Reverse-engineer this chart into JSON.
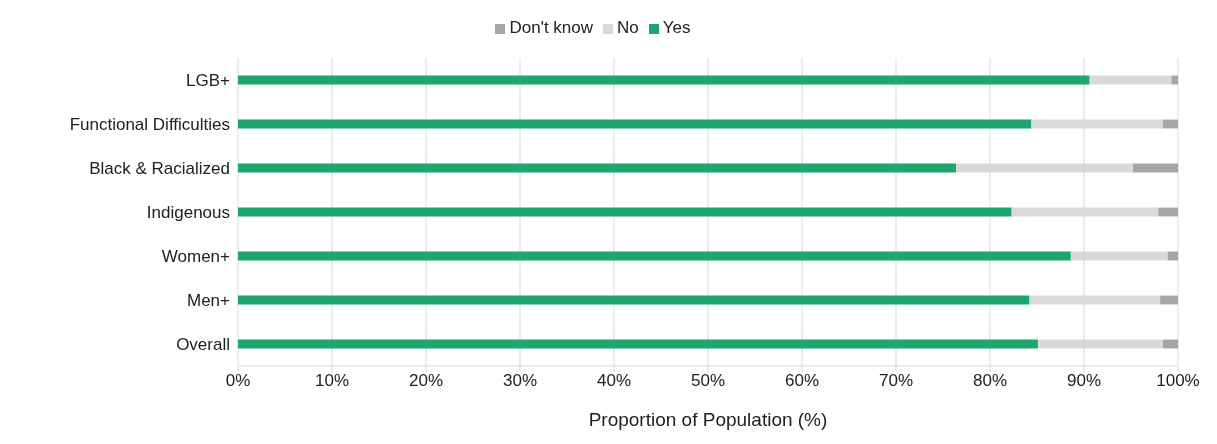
{
  "chart_data": {
    "type": "bar",
    "orientation": "horizontal",
    "stacked": true,
    "xlabel": "Proportion of Population (%)",
    "categories": [
      "LGB+",
      "Functional Difficulties",
      "Black & Racialized",
      "Indigenous",
      "Women+",
      "Men+",
      "Overall"
    ],
    "series": [
      {
        "name": "Yes",
        "color": "#1fa56e",
        "values": [
          90.6,
          84.4,
          76.4,
          82.3,
          88.6,
          84.2,
          85.1
        ]
      },
      {
        "name": "No",
        "color": "#d9d9d9",
        "values": [
          8.7,
          14.0,
          18.8,
          15.6,
          10.3,
          13.9,
          13.3
        ]
      },
      {
        "name": "Don't know",
        "color": "#a6a6a6",
        "values": [
          0.7,
          1.6,
          4.8,
          2.1,
          1.1,
          1.9,
          1.6
        ]
      }
    ],
    "xlim": [
      0,
      100
    ],
    "xticks": [
      {
        "value": 0,
        "label": "0%"
      },
      {
        "value": 10,
        "label": "10%"
      },
      {
        "value": 20,
        "label": "20%"
      },
      {
        "value": 30,
        "label": "30%"
      },
      {
        "value": 40,
        "label": "40%"
      },
      {
        "value": 50,
        "label": "50%"
      },
      {
        "value": 60,
        "label": "60%"
      },
      {
        "value": 70,
        "label": "70%"
      },
      {
        "value": 80,
        "label": "80%"
      },
      {
        "value": 90,
        "label": "90%"
      },
      {
        "value": 100,
        "label": "100%"
      }
    ],
    "grid": "x",
    "legend": "top"
  }
}
